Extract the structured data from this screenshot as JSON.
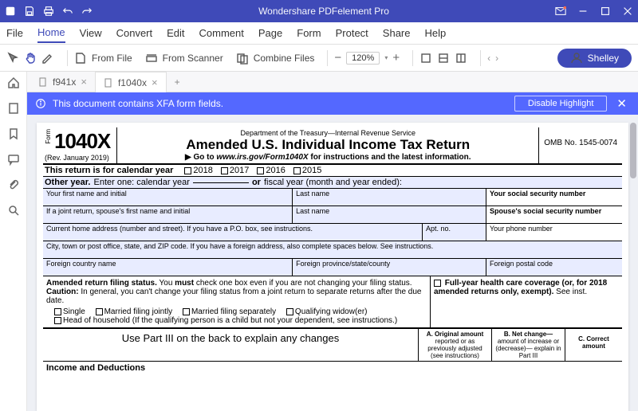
{
  "app": {
    "title": "Wondershare PDFelement Pro"
  },
  "menu": [
    "File",
    "Home",
    "View",
    "Convert",
    "Edit",
    "Comment",
    "Page",
    "Form",
    "Protect",
    "Share",
    "Help"
  ],
  "menu_active": 1,
  "toolbar": {
    "from_file": "From File",
    "from_scanner": "From Scanner",
    "combine": "Combine Files",
    "zoom": "120%",
    "user": "Shelley"
  },
  "tabs": [
    {
      "name": "f941x",
      "active": false
    },
    {
      "name": "f1040x",
      "active": true
    }
  ],
  "xfa": {
    "msg": "This document contains XFA form fields.",
    "disable": "Disable Highlight"
  },
  "form": {
    "form_label": "Form",
    "form_no": "1040X",
    "rev": "(Rev. January 2019)",
    "dept": "Department of the Treasury—Internal Revenue Service",
    "title": "Amended U.S. Individual Income Tax Return",
    "goto_prefix": "▶ Go to ",
    "goto_url": "www.irs.gov/Form1040X",
    "goto_suffix": " for instructions and the latest information.",
    "omb": "OMB No. 1545-0074",
    "calyear_label": "This return is for calendar year",
    "years": [
      "2018",
      "2017",
      "2016",
      "2015"
    ],
    "otheryear_label": "Other year.",
    "otheryear_text1": " Enter one: calendar year",
    "otheryear_or": "or",
    "otheryear_text2": " fiscal year (month and year ended):",
    "first_name": "Your first name and initial",
    "last_name": "Last name",
    "ssn": "Your social security number",
    "sp_first": "If a joint return, spouse's first name and initial",
    "sp_last": "Last name",
    "sp_ssn": "Spouse's social security number",
    "address": "Current home address (number and street). If you have a P.O. box, see instructions.",
    "apt": "Apt. no.",
    "phone": "Your phone number",
    "city": "City, town or post office, state, and ZIP code. If you have a foreign address, also complete spaces below. See instructions.",
    "fcountry": "Foreign country name",
    "fprov": "Foreign province/state/county",
    "fpostal": "Foreign postal code",
    "amended_status_1": "Amended return filing status.",
    "amended_status_2": " You ",
    "amended_status_3": "must",
    "amended_status_4": " check one box even if you are not changing your filing status. ",
    "amended_status_5": "Caution:",
    "amended_status_6": " In general, you can't change your filing status from a joint return to separate returns after the due date.",
    "fullyear_1": "Full-year health care coverage (or, for 2018 amended returns only, exempt).",
    "fullyear_2": " See inst.",
    "fs_single": "Single",
    "fs_mfj": "Married filing jointly",
    "fs_mfs": "Married filing separately",
    "fs_qw": "Qualifying widow(er)",
    "fs_hoh": "Head of household (If the qualifying person is a child but not your dependent, see instructions.)",
    "part3": "Use Part III on the back to explain any changes",
    "colA_1": "A. Original amount",
    "colA_2": "reported or as previously adjusted (see instructions)",
    "colB_1": "B. Net change—",
    "colB_2": "amount of increase or (decrease)— explain in Part III",
    "colC_1": "C. Correct amount",
    "income_ded": "Income and Deductions"
  }
}
